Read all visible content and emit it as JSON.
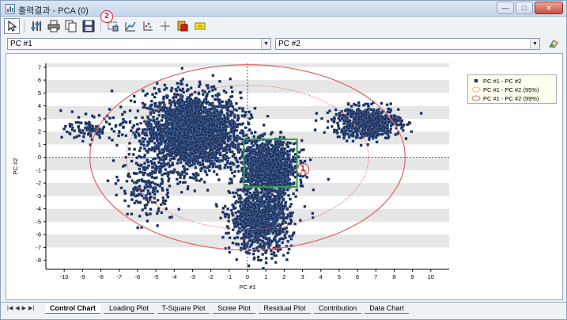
{
  "window": {
    "title": "출력결과 - PCA (0)",
    "controls": {
      "minimize": "—",
      "maximize": "□",
      "close": "✕"
    }
  },
  "toolbar": {
    "buttons": [
      {
        "name": "pointer-tool",
        "icon": "cursor-icon"
      },
      {
        "name": "properties-tool",
        "icon": "sliders-icon"
      },
      {
        "name": "print-tool",
        "icon": "printer-icon"
      },
      {
        "name": "copy-tool",
        "icon": "copy-icon"
      },
      {
        "name": "save-tool",
        "icon": "save-icon"
      },
      {
        "name": "zoom-rect-tool",
        "icon": "zoom-rect-icon"
      },
      {
        "name": "line-tool",
        "icon": "line-icon"
      },
      {
        "name": "axis-tool",
        "icon": "axis-icon"
      },
      {
        "name": "crosshair-tool",
        "icon": "crosshair-icon"
      },
      {
        "name": "highlight-tool",
        "icon": "highlight-icon"
      },
      {
        "name": "marker-tool",
        "icon": "marker-icon"
      }
    ],
    "callout_2": "2"
  },
  "selectors": {
    "x_axis_value": "PC #1",
    "y_axis_value": "PC #2",
    "clear_icon": "eraser-icon"
  },
  "plot": {
    "callout_1": "1",
    "highlight_box_color": "#2ea043",
    "ellipse_color": "#e06b6b",
    "marker_color": "#1a2a52"
  },
  "chart_data": {
    "type": "scatter",
    "xlabel": "PC #1",
    "ylabel": "PC #2",
    "xlim": [
      -11,
      11
    ],
    "ylim": [
      -8.7,
      7.3
    ],
    "x_ticks": [
      -10,
      -9,
      -8,
      -7,
      -6,
      -5,
      -4,
      -3,
      -2,
      -1,
      0,
      1,
      2,
      3,
      4,
      5,
      6,
      7,
      8,
      9,
      10
    ],
    "y_ticks": [
      7,
      6,
      5,
      4,
      3,
      2,
      1,
      0,
      -1,
      -2,
      -3,
      -4,
      -5,
      -6,
      -7,
      -8
    ],
    "grid": "alternating horizontal bands",
    "legend_position": "top-right",
    "legend": [
      "PC #1 - PC #2",
      "PC #1 - PC #2 (95%)",
      "PC #1 - PC #2 (99%)"
    ],
    "clusters": [
      {
        "cx": -3.0,
        "cy": 2.0,
        "sx": 1.3,
        "sy": 1.5,
        "n": 2600
      },
      {
        "cx": 1.2,
        "cy": -0.8,
        "sx": 0.75,
        "sy": 1.0,
        "n": 1200
      },
      {
        "cx": 0.7,
        "cy": -4.8,
        "sx": 0.8,
        "sy": 1.3,
        "n": 1100
      },
      {
        "cx": 6.5,
        "cy": 2.7,
        "sx": 0.9,
        "sy": 0.6,
        "n": 700
      },
      {
        "cx": -8.3,
        "cy": 2.2,
        "sx": 0.8,
        "sy": 0.45,
        "n": 120
      },
      {
        "cx": -5.5,
        "cy": -2.3,
        "sx": 0.7,
        "sy": 1.3,
        "n": 200
      }
    ],
    "ellipses": [
      {
        "label": "95%",
        "cx": 0,
        "cy": 0,
        "rx": 6.6,
        "ry": 5.6,
        "style": "dotted"
      },
      {
        "label": "99%",
        "cx": 0,
        "cy": 0,
        "rx": 8.6,
        "ry": 7.2,
        "style": "solid"
      }
    ],
    "selection_box": {
      "x0": -0.2,
      "x1": 2.7,
      "y0": -2.3,
      "y1": 1.4
    }
  },
  "tabs": [
    {
      "label": "Control Chart",
      "active": true
    },
    {
      "label": "Loading Plot",
      "active": false
    },
    {
      "label": "T-Square Plot",
      "active": false
    },
    {
      "label": "Scree Plot",
      "active": false
    },
    {
      "label": "Residual Plot",
      "active": false
    },
    {
      "label": "Contribution",
      "active": false
    },
    {
      "label": "Data Chart",
      "active": false
    }
  ],
  "tab_nav": [
    "|◀",
    "◀",
    "▶",
    "▶|"
  ]
}
